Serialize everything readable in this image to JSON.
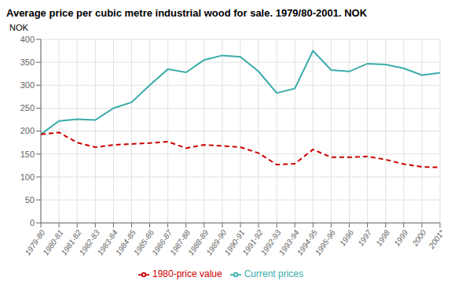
{
  "chart_data": {
    "type": "line",
    "title": "Average price per cubic metre industrial wood for sale. 1979/80-2001. NOK",
    "ylabel": "NOK",
    "categories": [
      "1979-80",
      "1980-81",
      "1981-82",
      "1982-83",
      "1983-84",
      "1984-85",
      "1985-86",
      "1986-87",
      "1987-88",
      "1988-89",
      "1989-90",
      "1990-91",
      "1991-92",
      "1992-93",
      "1993-94",
      "1994-95",
      "1995-96",
      "1996",
      "1997",
      "1998",
      "1999",
      "2000",
      "2001*"
    ],
    "series": [
      {
        "name": "Current prices",
        "color": "#3aada8",
        "line_style": "solid",
        "values": [
          193,
          222,
          226,
          224,
          250,
          263,
          300,
          335,
          328,
          355,
          365,
          362,
          330,
          283,
          293,
          375,
          333,
          330,
          347,
          345,
          337,
          322,
          327
        ]
      },
      {
        "name": "1980-price value",
        "color": "#cc0000",
        "line_style": "dashed",
        "values": [
          193,
          197,
          175,
          165,
          170,
          172,
          174,
          177,
          163,
          170,
          168,
          165,
          152,
          127,
          129,
          160,
          143,
          143,
          145,
          138,
          128,
          122,
          121
        ]
      }
    ],
    "ylim": [
      0,
      400
    ],
    "yticks": [
      0,
      50,
      100,
      150,
      200,
      250,
      300,
      350,
      400
    ],
    "grid": true,
    "legend": "bottom"
  }
}
